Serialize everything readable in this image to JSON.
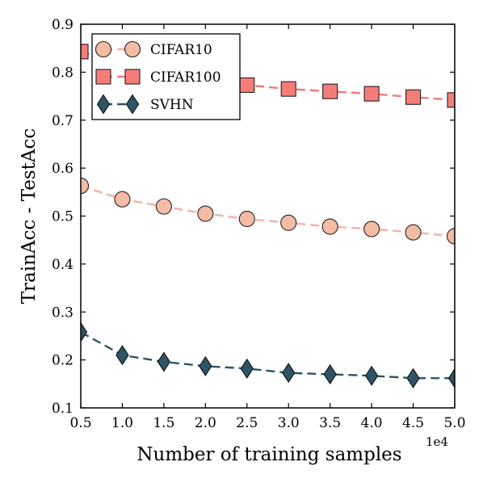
{
  "chart_data": {
    "type": "line",
    "xlabel": "Number of training samples",
    "ylabel": "TrainAcc - TestAcc",
    "x_offset_label": "1e4",
    "xlim": [
      0.5,
      5.0
    ],
    "ylim": [
      0.1,
      0.9
    ],
    "x": [
      0.5,
      1.0,
      1.5,
      2.0,
      2.5,
      3.0,
      3.5,
      4.0,
      4.5,
      5.0
    ],
    "x_ticks": [
      "0.5",
      "1.0",
      "1.5",
      "2.0",
      "2.5",
      "3.0",
      "3.5",
      "4.0",
      "4.5",
      "5.0"
    ],
    "y_ticks": [
      "0.1",
      "0.2",
      "0.3",
      "0.4",
      "0.5",
      "0.6",
      "0.7",
      "0.8",
      "0.9"
    ],
    "grid": false,
    "legend_position": "top-left",
    "series": [
      {
        "name": "CIFAR10",
        "marker": "circle",
        "color": "#f4bba5",
        "line_color": "#f2b4a2",
        "values": [
          0.563,
          0.535,
          0.52,
          0.505,
          0.494,
          0.486,
          0.478,
          0.473,
          0.466,
          0.458
        ]
      },
      {
        "name": "CIFAR100",
        "marker": "square",
        "color": "#f47d7a",
        "line_color": "#ef7b78",
        "values": [
          0.843,
          0.815,
          0.795,
          0.782,
          0.773,
          0.765,
          0.76,
          0.755,
          0.748,
          0.742
        ]
      },
      {
        "name": "SVHN",
        "marker": "diamond",
        "color": "#2d5566",
        "line_color": "#2d5566",
        "values": [
          0.258,
          0.21,
          0.196,
          0.187,
          0.182,
          0.173,
          0.17,
          0.167,
          0.162,
          0.162
        ]
      }
    ]
  }
}
